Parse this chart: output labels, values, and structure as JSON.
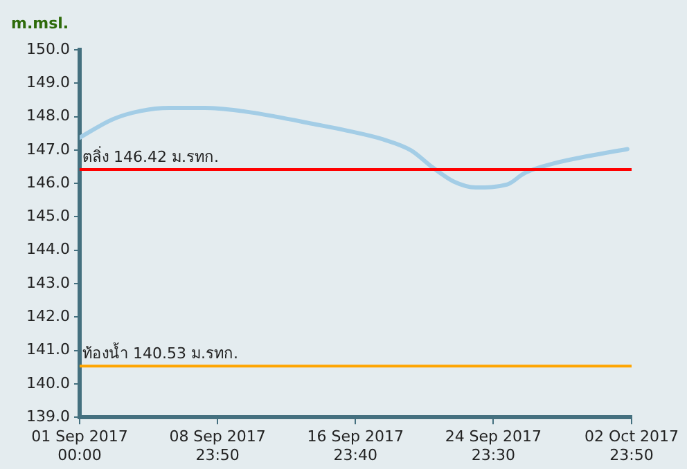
{
  "chart_data": {
    "type": "line",
    "ylabel": "m.msl.",
    "x": [
      "2017-09-01T00:00",
      "2017-09-02T22:00",
      "2017-09-04T13:00",
      "2017-09-06T05:00",
      "2017-09-08T06:00",
      "2017-09-10T08:00",
      "2017-09-12T09:00",
      "2017-09-14T11:00",
      "2017-09-16T12:00",
      "2017-09-18T14:00",
      "2017-09-20T05:00",
      "2017-09-21T11:00",
      "2017-09-22T17:00",
      "2017-09-23T23:00",
      "2017-09-25T19:00",
      "2017-09-26T19:00",
      "2017-09-28T12:00",
      "2017-09-30T12:00",
      "2017-10-02T18:00"
    ],
    "series": [
      {
        "color": "#a3cde6",
        "values": [
          147.37,
          147.92,
          148.17,
          148.26,
          148.26,
          148.17,
          148.0,
          147.79,
          147.58,
          147.32,
          146.99,
          146.48,
          146.05,
          145.88,
          145.97,
          146.31,
          146.6,
          146.82,
          147.03
        ]
      }
    ],
    "xlim": [
      "2017-09-01T00:00",
      "2017-10-02T23:50"
    ],
    "xticks": [
      {
        "value": "2017-09-01T00:00",
        "label": "01 Sep 2017 00:00"
      },
      {
        "value": "2017-09-08T23:50",
        "label": "08 Sep 2017 23:50"
      },
      {
        "value": "2017-09-16T23:40",
        "label": "16 Sep 2017 23:40"
      },
      {
        "value": "2017-09-24T23:30",
        "label": "24 Sep 2017 23:30"
      },
      {
        "value": "2017-10-02T23:50",
        "label": "02 Oct 2017 23:50"
      }
    ],
    "ylim": [
      139,
      150
    ],
    "yticks": [
      {
        "value": 139,
        "label": "139.0"
      },
      {
        "value": 140,
        "label": "140.0"
      },
      {
        "value": 141,
        "label": "141.0"
      },
      {
        "value": 142,
        "label": "142.0"
      },
      {
        "value": 143,
        "label": "143.0"
      },
      {
        "value": 144,
        "label": "144.0"
      },
      {
        "value": 145,
        "label": "145.0"
      },
      {
        "value": 146,
        "label": "146.0"
      },
      {
        "value": 147,
        "label": "147.0"
      },
      {
        "value": 148,
        "label": "148.0"
      },
      {
        "value": 149,
        "label": "149.0"
      },
      {
        "value": 150,
        "label": "150.0"
      }
    ],
    "ref_lines": [
      {
        "axis": "y",
        "value": 146.42,
        "label": "ตลิ่ง 146.42 ม.รทก.",
        "color": "#ff0000"
      },
      {
        "axis": "y",
        "value": 140.53,
        "label": "ท้องน้ำ 140.53 ม.รทก.",
        "color": "#ffa500"
      }
    ],
    "grid": false,
    "legend": false,
    "marker": "none",
    "line_style": "solid"
  }
}
